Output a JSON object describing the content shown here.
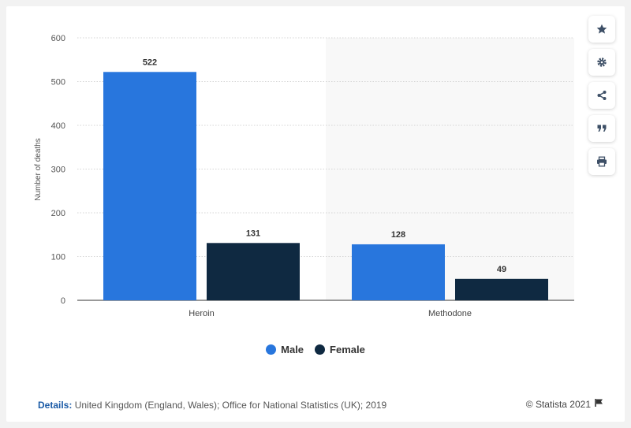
{
  "chart_data": {
    "type": "bar",
    "categories": [
      "Heroin",
      "Methodone"
    ],
    "series": [
      {
        "name": "Male",
        "values": [
          522,
          128
        ],
        "color": "#2876dd"
      },
      {
        "name": "Female",
        "values": [
          131,
          49
        ],
        "color": "#0f2941"
      }
    ],
    "ylabel": "Number of deaths",
    "ylim": [
      0,
      600
    ],
    "yticks": [
      "0",
      "100",
      "200",
      "300",
      "400",
      "500",
      "600"
    ],
    "grid": true,
    "legend": "bottom-center"
  },
  "footer": {
    "details_label": "Details:",
    "details_text": "United Kingdom (England, Wales); Office for National Statistics (UK); 2019",
    "copyright": "© Statista 2021"
  },
  "toolbar": {
    "icons": [
      "star-icon",
      "gear-icon",
      "share-icon",
      "quote-icon",
      "print-icon"
    ]
  }
}
